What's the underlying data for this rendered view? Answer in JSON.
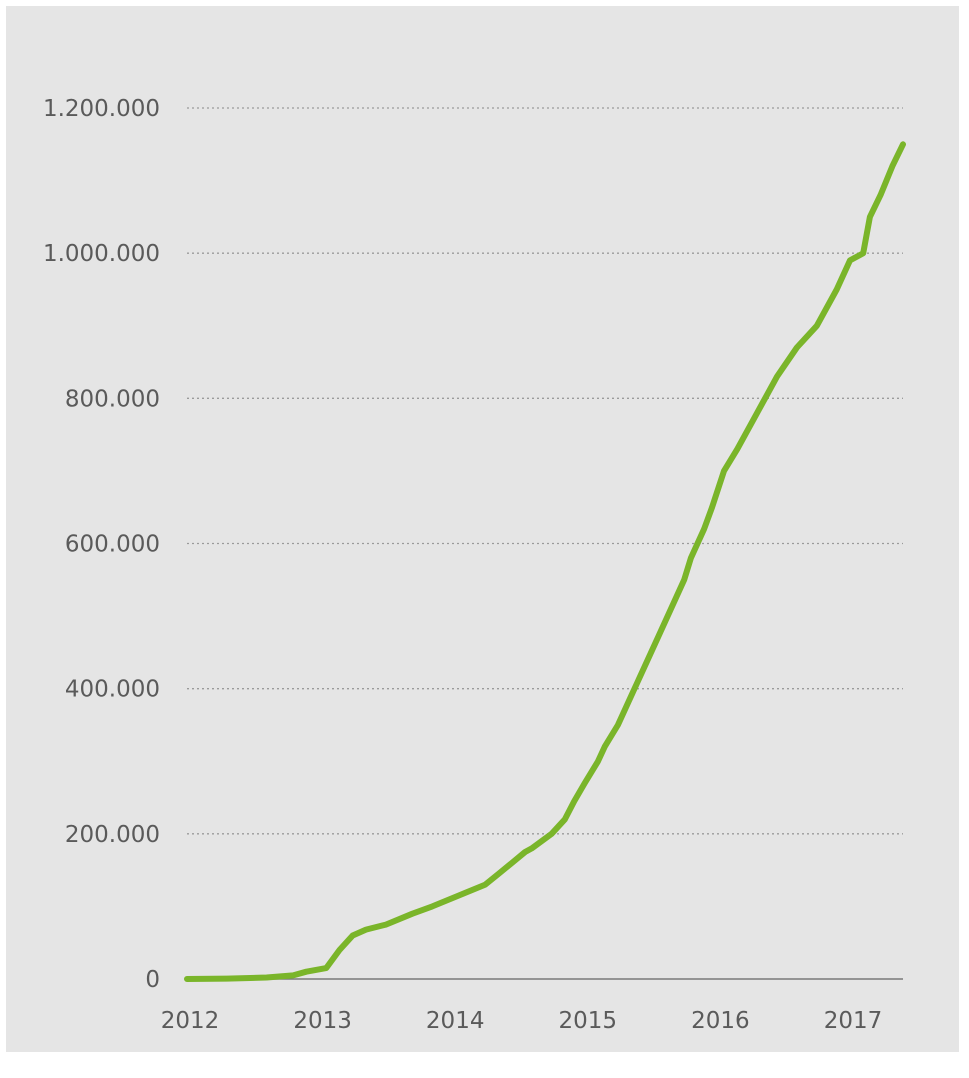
{
  "chart_data": {
    "type": "line",
    "title": "",
    "xlabel": "",
    "ylabel": "",
    "xlim": [
      2012,
      2017.4
    ],
    "ylim": [
      0,
      1200000
    ],
    "grid": true,
    "legend": "none",
    "colors": {
      "line": "#7ab52a",
      "grid": "#9a9a9a",
      "axis": "#7a7a7a",
      "background": "#e5e5e5",
      "text": "#5a5a5a"
    },
    "y_ticks": [
      {
        "value": 0,
        "label": "0"
      },
      {
        "value": 200000,
        "label": "200.000"
      },
      {
        "value": 400000,
        "label": "400.000"
      },
      {
        "value": 600000,
        "label": "600.000"
      },
      {
        "value": 800000,
        "label": "800.000"
      },
      {
        "value": 1000000,
        "label": "1.000.000"
      },
      {
        "value": 1200000,
        "label": "1.200.000"
      }
    ],
    "x_ticks": [
      {
        "value": 2012,
        "label": "2012"
      },
      {
        "value": 2013,
        "label": "2013"
      },
      {
        "value": 2014,
        "label": "2014"
      },
      {
        "value": 2015,
        "label": "2015"
      },
      {
        "value": 2016,
        "label": "2016"
      },
      {
        "value": 2017,
        "label": "2017"
      }
    ],
    "series": [
      {
        "x": [
          2012.0,
          2012.3,
          2012.6,
          2012.8,
          2012.9,
          2013.05,
          2013.15,
          2013.25,
          2013.35,
          2013.5,
          2013.7,
          2013.85,
          2014.05,
          2014.25,
          2014.35,
          2014.45,
          2014.55,
          2014.6,
          2014.75,
          2014.85,
          2014.92,
          2015.0,
          2015.1,
          2015.15,
          2015.25,
          2015.35,
          2015.5,
          2015.65,
          2015.75,
          2015.8,
          2015.9,
          2015.96,
          2016.05,
          2016.15,
          2016.3,
          2016.45,
          2016.6,
          2016.75,
          2016.9,
          2017.0,
          2017.1,
          2017.15,
          2017.23,
          2017.32,
          2017.4
        ],
        "y": [
          0,
          500,
          2000,
          5000,
          10000,
          15000,
          40000,
          60000,
          68000,
          75000,
          90000,
          100000,
          115000,
          130000,
          145000,
          160000,
          175000,
          180000,
          200000,
          220000,
          245000,
          270000,
          300000,
          320000,
          350000,
          390000,
          450000,
          510000,
          550000,
          580000,
          620000,
          650000,
          700000,
          730000,
          780000,
          830000,
          870000,
          900000,
          950000,
          990000,
          1000000,
          1050000,
          1080000,
          1120000,
          1150000
        ]
      }
    ]
  }
}
